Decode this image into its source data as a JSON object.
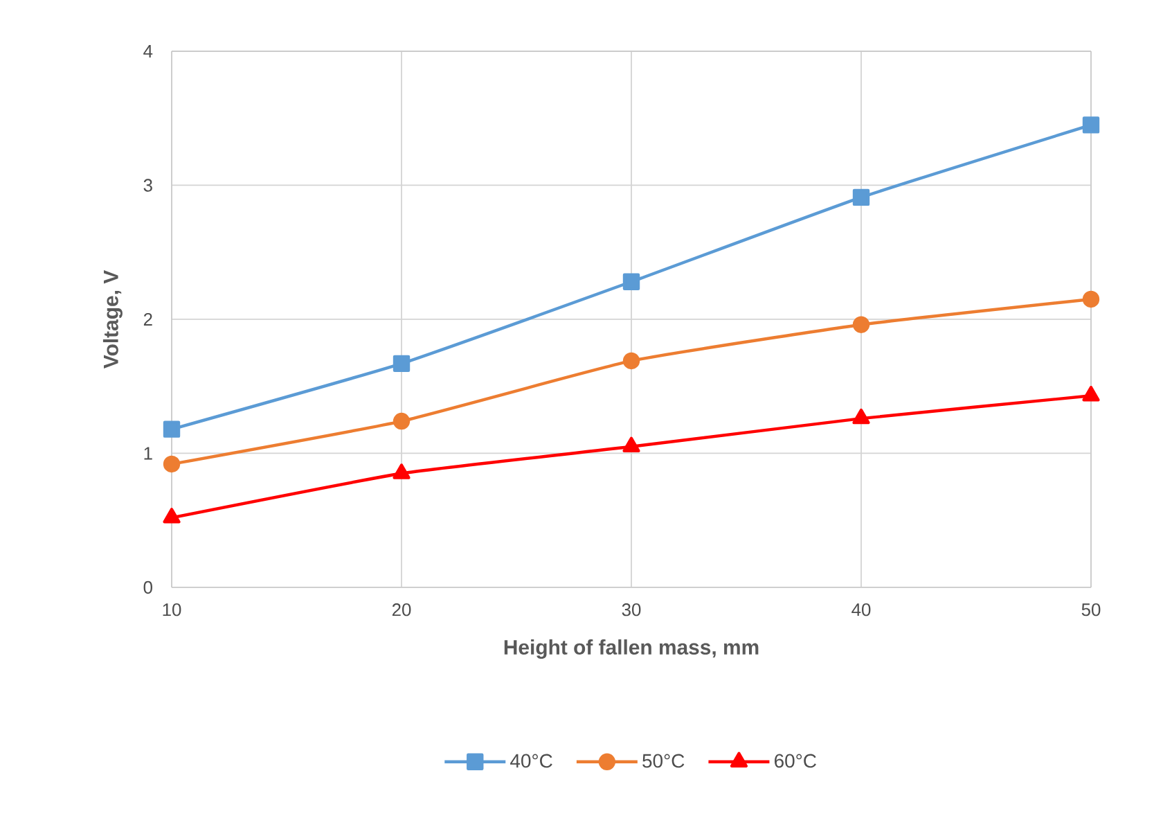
{
  "chart_data": {
    "type": "line",
    "xlabel": "Height of fallen mass, mm",
    "ylabel": "Voltage, V",
    "x": [
      10,
      20,
      30,
      40,
      50
    ],
    "series": [
      {
        "name": "40°C",
        "color": "#5b9bd5",
        "marker": "square",
        "values": [
          1.18,
          1.67,
          2.28,
          2.91,
          3.45
        ]
      },
      {
        "name": "50°C",
        "color": "#ed7d31",
        "marker": "circle",
        "values": [
          0.92,
          1.24,
          1.69,
          1.96,
          2.15
        ]
      },
      {
        "name": "60°C",
        "color": "#ff0000",
        "marker": "triangle",
        "values": [
          0.52,
          0.85,
          1.05,
          1.26,
          1.43
        ]
      }
    ],
    "xlim": [
      10,
      50
    ],
    "ylim": [
      0,
      4
    ],
    "xticks": [
      10,
      20,
      30,
      40,
      50
    ],
    "yticks": [
      0,
      1,
      2,
      3,
      4
    ],
    "grid": true,
    "legend": "bottom",
    "line_style": "solid"
  }
}
